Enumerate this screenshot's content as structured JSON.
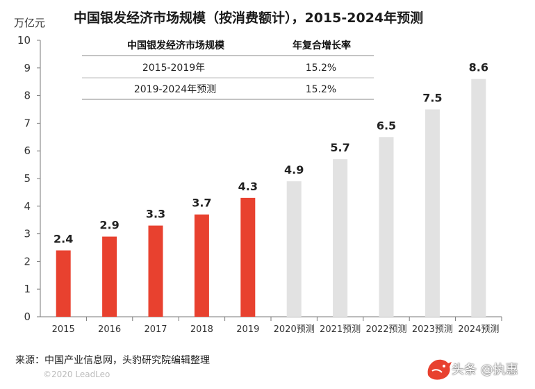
{
  "chart_data": {
    "type": "bar",
    "title": "中国银发经济市场规模（按消费额计），2015-2024年预测",
    "ylabel": "万亿元",
    "ylim": [
      0,
      10
    ],
    "yticks": [
      "0",
      "1",
      "2",
      "3",
      "4",
      "5",
      "6",
      "7",
      "8",
      "9",
      "10"
    ],
    "grid": false,
    "categories": [
      "2015",
      "2016",
      "2017",
      "2018",
      "2019",
      "2020预测",
      "2021预测",
      "2022预测",
      "2023预测",
      "2024预测"
    ],
    "values": [
      2.4,
      2.9,
      3.3,
      3.7,
      4.3,
      4.9,
      5.7,
      6.5,
      7.5,
      8.6
    ],
    "value_labels": [
      "2.4",
      "2.9",
      "3.3",
      "3.7",
      "4.3",
      "4.9",
      "5.7",
      "6.5",
      "7.5",
      "8.6"
    ],
    "colors": {
      "actual": "#e8412f",
      "forecast": "#e2e2e2"
    },
    "actual_count": 5
  },
  "table": {
    "header": [
      "中国银发经济市场规模",
      "年复合增长率"
    ],
    "rows": [
      [
        "2015-2019年",
        "15.2%"
      ],
      [
        "2019-2024年预测",
        "15.2%"
      ]
    ]
  },
  "footer": {
    "source": "来源：中国产业信息网，头豹研究院编辑整理",
    "copyright": "©2020 LeadLeo"
  },
  "watermark": {
    "text": "头条 @执惠",
    "brand": "头豹",
    "brand_sub": "LeadLeo",
    "logo_icon": "leopard-logo-icon"
  }
}
